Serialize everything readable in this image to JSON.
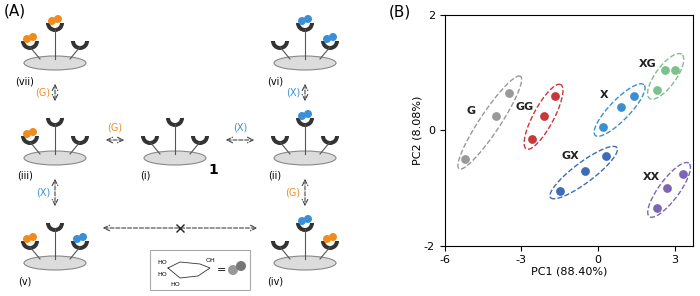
{
  "diagram": {
    "panel_label": "(A)",
    "nodes": [
      {
        "label": "(i)",
        "caption": "1"
      },
      {
        "label": "(ii)"
      },
      {
        "label": "(iii)"
      },
      {
        "label": "(iv)"
      },
      {
        "label": "(v)"
      },
      {
        "label": "(vi)"
      },
      {
        "label": "(vii)"
      }
    ],
    "edges": [
      {
        "from": 0,
        "to": 1,
        "label": "(X)",
        "color": "#3a8fd8"
      },
      {
        "from": 0,
        "to": 2,
        "label": "(G)",
        "color": "#f08c1e"
      },
      {
        "from": 1,
        "to": 5,
        "label": "(X)",
        "color": "#3a8fd8"
      },
      {
        "from": 1,
        "to": 3,
        "label": "(G)",
        "color": "#f08c1e"
      },
      {
        "from": 2,
        "to": 6,
        "label": "(G)",
        "color": "#f08c1e"
      },
      {
        "from": 2,
        "to": 4,
        "label": "(X)",
        "color": "#3a8fd8"
      }
    ],
    "inset": {
      "texts": [
        "HO",
        "HO",
        "HO",
        "OH"
      ],
      "equals": "="
    }
  },
  "chart_data": {
    "type": "scatter",
    "panel_label": "(B)",
    "x_label": "PC1 (88.40%)",
    "y_label": "PC2 (8.08%)",
    "xlim": [
      -6,
      3.7
    ],
    "xticks": [
      -6,
      -3,
      0,
      3
    ],
    "ylim": [
      -2,
      2
    ],
    "yticks": [
      -2,
      0,
      2
    ],
    "grid": false,
    "series": [
      {
        "name": "G",
        "color": "#999999",
        "x": [
          -5.2,
          -4.0,
          -3.5
        ],
        "values": [
          -0.5,
          0.25,
          0.65
        ]
      },
      {
        "name": "GG",
        "color": "#c8383a",
        "x": [
          -2.6,
          -2.1,
          -1.7
        ],
        "values": [
          -0.15,
          0.25,
          0.6
        ]
      },
      {
        "name": "X",
        "color": "#3b8fd0",
        "x": [
          0.2,
          0.9,
          1.4
        ],
        "values": [
          0.05,
          0.4,
          0.6
        ]
      },
      {
        "name": "XG",
        "color": "#7cc08e",
        "x": [
          2.3,
          2.6,
          3.0
        ],
        "values": [
          0.7,
          1.05,
          1.05
        ]
      },
      {
        "name": "GX",
        "color": "#3a6db5",
        "x": [
          -1.5,
          -0.5,
          0.3
        ],
        "values": [
          -1.05,
          -0.7,
          -0.45
        ]
      },
      {
        "name": "XX",
        "color": "#7b66b5",
        "x": [
          2.3,
          2.7,
          3.3
        ],
        "values": [
          -1.35,
          -1.0,
          -0.75
        ]
      }
    ]
  }
}
